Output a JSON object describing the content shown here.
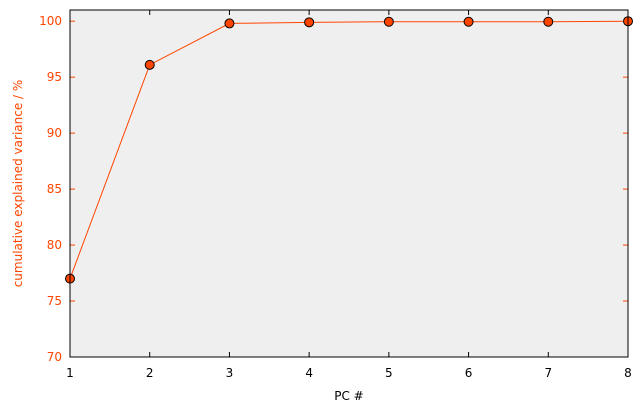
{
  "chart_data": {
    "type": "line",
    "title": "",
    "xlabel": "PC #",
    "ylabel": "cumulative explained variance / %",
    "xlim": [
      1,
      8
    ],
    "ylim": [
      70,
      101
    ],
    "xticks": [
      1,
      2,
      3,
      4,
      5,
      6,
      7,
      8
    ],
    "yticks": [
      70,
      75,
      80,
      85,
      90,
      95,
      100
    ],
    "grid": false,
    "series": [
      {
        "x": [
          1,
          2,
          3,
          4,
          5,
          6,
          7,
          8
        ],
        "values": [
          77.0,
          96.1,
          99.8,
          99.9,
          99.95,
          99.95,
          99.95,
          100.0
        ]
      }
    ]
  },
  "colors": {
    "accent": "#ff4500",
    "marker_edge": "#000000",
    "plot_background": "#efefef",
    "axes": "#000000"
  }
}
